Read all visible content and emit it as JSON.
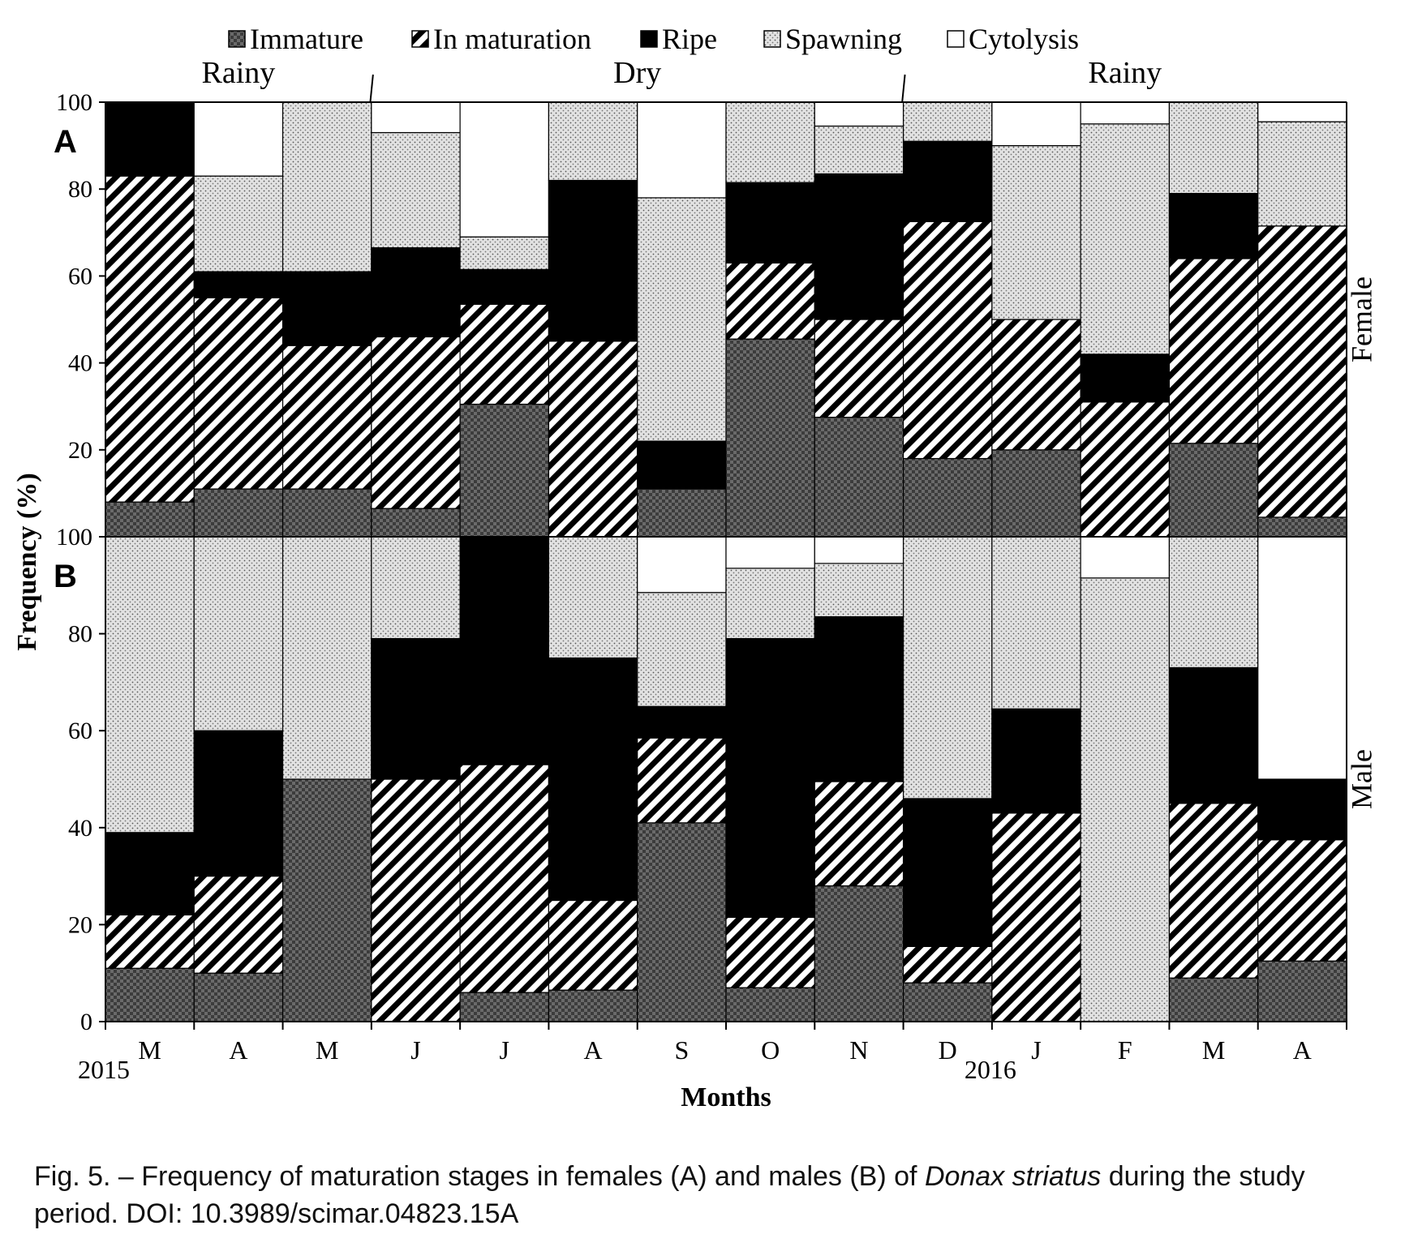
{
  "chart_data": {
    "type": "bar",
    "stacked": true,
    "title": "",
    "ylabel": "Frequency (%)",
    "xlabel": "Months",
    "ylim": [
      0,
      100
    ],
    "yticks": [
      0,
      20,
      40,
      60,
      80,
      100
    ],
    "categories": [
      "M",
      "A",
      "M",
      "J",
      "J",
      "A",
      "S",
      "O",
      "N",
      "D",
      "J",
      "F",
      "M",
      "A"
    ],
    "year_labels": [
      {
        "label": "2015",
        "index": 0
      },
      {
        "label": "2016",
        "index": 10
      }
    ],
    "seasons": [
      {
        "label": "Rainy",
        "from": 0,
        "to": 3
      },
      {
        "label": "Dry",
        "from": 3,
        "to": 9
      },
      {
        "label": "Rainy",
        "from": 9,
        "to": 14
      }
    ],
    "legend": [
      "Immature",
      "In maturation",
      "Ripe",
      "Spawning",
      "Cytolysis"
    ],
    "legend_position": "top",
    "series_colors": {
      "Immature": "#555555",
      "In maturation": "#000000",
      "Ripe": "#000000",
      "Spawning": "#d6d6d6",
      "Cytolysis": "#ffffff"
    },
    "panels": [
      {
        "label": "A",
        "side_label": "Female",
        "series": [
          {
            "name": "Immature",
            "values": [
              8,
              11,
              11,
              6.5,
              30.5,
              0,
              11,
              45.5,
              27.5,
              18,
              20,
              0,
              21.5,
              4.5
            ]
          },
          {
            "name": "In maturation",
            "values": [
              75,
              44,
              33,
              39.5,
              23,
              45,
              0,
              17.5,
              22.5,
              54.5,
              30,
              31,
              42.5,
              67
            ]
          },
          {
            "name": "Ripe",
            "values": [
              17,
              6,
              17,
              20.5,
              8,
              37,
              11,
              18.5,
              33.5,
              18.5,
              0,
              11,
              15,
              0
            ]
          },
          {
            "name": "Spawning",
            "values": [
              0,
              22,
              39,
              26.5,
              7.5,
              18,
              56,
              18.5,
              11,
              9,
              40,
              53,
              21,
              24
            ]
          },
          {
            "name": "Cytolysis",
            "values": [
              0,
              17,
              0,
              7,
              31,
              0,
              22,
              0,
              5.5,
              0,
              10,
              5,
              0,
              4.5
            ]
          }
        ]
      },
      {
        "label": "B",
        "side_label": "Male",
        "series": [
          {
            "name": "Immature",
            "values": [
              11,
              10,
              50,
              0,
              6,
              6.5,
              41,
              7,
              28,
              8,
              0,
              0,
              9,
              12.5
            ]
          },
          {
            "name": "In maturation",
            "values": [
              11,
              20,
              0,
              50,
              47,
              18.5,
              17.5,
              14.5,
              21.5,
              7.5,
              43,
              0,
              36,
              25
            ]
          },
          {
            "name": "Ripe",
            "values": [
              17,
              30,
              0,
              29,
              47,
              50,
              6.5,
              57.5,
              34,
              30.5,
              21.5,
              0,
              28,
              12.5
            ]
          },
          {
            "name": "Spawning",
            "values": [
              61,
              40,
              50,
              21,
              0,
              25,
              23.5,
              14.5,
              11,
              54,
              35.5,
              91.5,
              27,
              0
            ]
          },
          {
            "name": "Cytolysis",
            "values": [
              0,
              0,
              0,
              0,
              0,
              0,
              11.5,
              6.5,
              5.5,
              0,
              0,
              8.5,
              0,
              50
            ]
          }
        ]
      }
    ]
  },
  "caption": {
    "prefix": "Fig. 5. – Frequency of maturation stages in females (A) and males (B) of ",
    "species": "Donax striatus",
    "suffix": " during the study period. DOI: 10.3989/scimar.04823.15A"
  }
}
